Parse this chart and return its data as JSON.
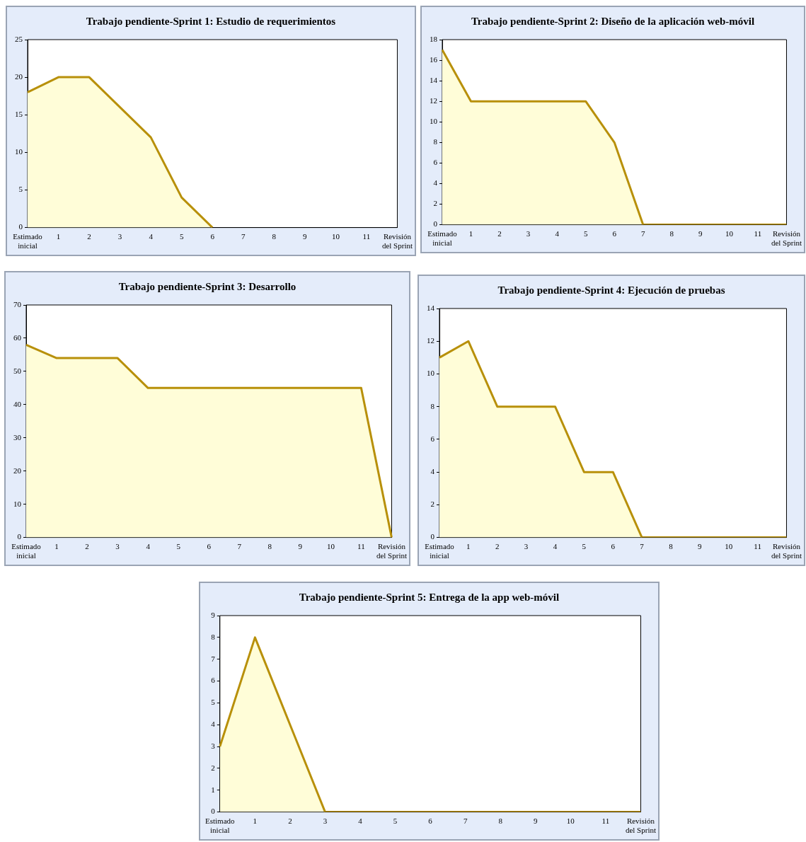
{
  "chart_data": [
    {
      "type": "area",
      "title": "Trabajo pendiente-Sprint 1: Estudio de requerimientos",
      "categories": [
        "Estimado\ninicial",
        "1",
        "2",
        "3",
        "4",
        "5",
        "6",
        "7",
        "8",
        "9",
        "10",
        "11",
        "Revisión\ndel Sprint"
      ],
      "series": [
        {
          "color": "#b8900a",
          "values": [
            18,
            20,
            20,
            16,
            12,
            4,
            0,
            null,
            null,
            null,
            null,
            null,
            null
          ]
        }
      ],
      "ylim": [
        0,
        25
      ],
      "yticks": [
        0,
        5,
        10,
        15,
        20,
        25
      ],
      "legend": false,
      "grid": false
    },
    {
      "type": "area",
      "title": "Trabajo pendiente-Sprint 2: Diseño de la aplicación web-móvil",
      "categories": [
        "Estimado\ninicial",
        "1",
        "2",
        "3",
        "4",
        "5",
        "6",
        "7",
        "8",
        "9",
        "10",
        "11",
        "Revisión\ndel Sprint"
      ],
      "series": [
        {
          "color": "#b8900a",
          "values": [
            17,
            12,
            12,
            12,
            12,
            12,
            8,
            0,
            0,
            0,
            0,
            0,
            0
          ]
        }
      ],
      "ylim": [
        0,
        18
      ],
      "yticks": [
        0,
        2,
        4,
        6,
        8,
        10,
        12,
        14,
        16,
        18
      ],
      "legend": false,
      "grid": false
    },
    {
      "type": "area",
      "title": "Trabajo pendiente-Sprint 3: Desarrollo",
      "categories": [
        "Estimado\ninicial",
        "1",
        "2",
        "3",
        "4",
        "5",
        "6",
        "7",
        "8",
        "9",
        "10",
        "11",
        "Revisión\ndel Sprint"
      ],
      "series": [
        {
          "color": "#b8900a",
          "values": [
            58,
            54,
            54,
            54,
            45,
            45,
            45,
            45,
            45,
            45,
            45,
            45,
            0
          ]
        }
      ],
      "ylim": [
        0,
        70
      ],
      "yticks": [
        0,
        10,
        20,
        30,
        40,
        50,
        60,
        70
      ],
      "legend": false,
      "grid": false
    },
    {
      "type": "area",
      "title": "Trabajo pendiente-Sprint 4: Ejecución de pruebas",
      "categories": [
        "Estimado\ninicial",
        "1",
        "2",
        "3",
        "4",
        "5",
        "6",
        "7",
        "8",
        "9",
        "10",
        "11",
        "Revisión\ndel Sprint"
      ],
      "series": [
        {
          "color": "#b8900a",
          "values": [
            11,
            12,
            8,
            8,
            8,
            4,
            4,
            0,
            0,
            0,
            0,
            0,
            0
          ]
        }
      ],
      "ylim": [
        0,
        14
      ],
      "yticks": [
        0,
        2,
        4,
        6,
        8,
        10,
        12,
        14
      ],
      "legend": false,
      "grid": false
    },
    {
      "type": "area",
      "title": "Trabajo pendiente-Sprint 5: Entrega de la app web-móvil",
      "categories": [
        "Estimado\ninicial",
        "1",
        "2",
        "3",
        "4",
        "5",
        "6",
        "7",
        "8",
        "9",
        "10",
        "11",
        "Revisión\ndel Sprint"
      ],
      "series": [
        {
          "color": "#b8900a",
          "values": [
            3,
            8,
            4,
            0,
            0,
            0,
            0,
            0,
            0,
            0,
            0,
            0,
            0
          ]
        }
      ],
      "ylim": [
        0,
        9
      ],
      "yticks": [
        0,
        1,
        2,
        3,
        4,
        5,
        6,
        7,
        8,
        9
      ],
      "legend": false,
      "grid": false
    }
  ]
}
